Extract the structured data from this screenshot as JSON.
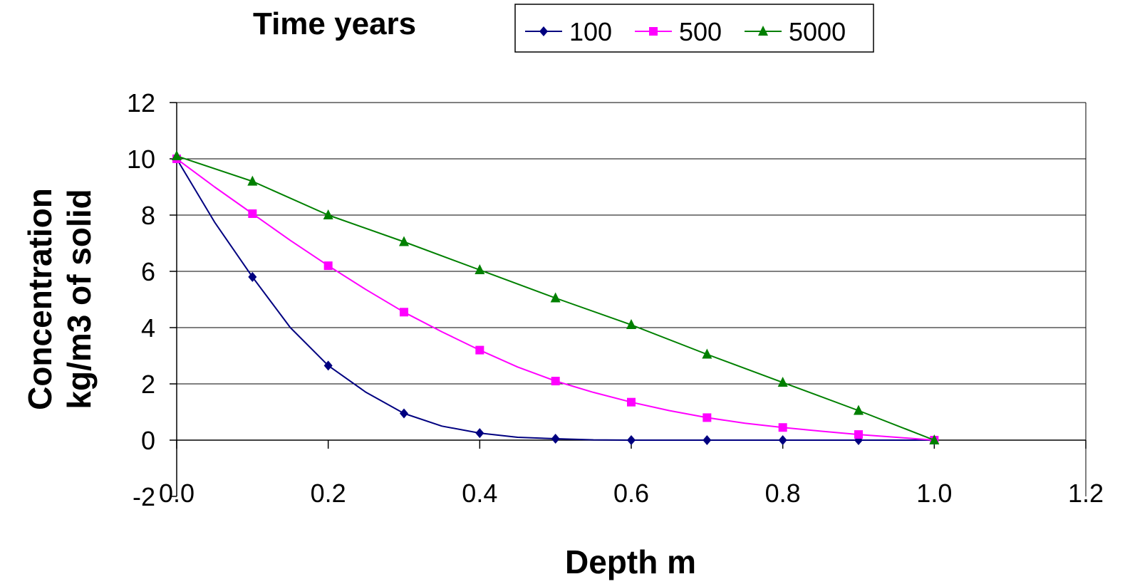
{
  "chart_data": {
    "type": "line",
    "legend_title": "Time years",
    "legend_position": "top-right",
    "xlabel": "Depth m",
    "ylabel_lines": [
      "Concentration",
      "kg/m3 of solid"
    ],
    "xlim": [
      0,
      1.2
    ],
    "ylim": [
      -2,
      12
    ],
    "x_ticks": [
      {
        "value": 0.0,
        "label": "0.0"
      },
      {
        "value": 0.2,
        "label": "0.2"
      },
      {
        "value": 0.4,
        "label": "0.4"
      },
      {
        "value": 0.6,
        "label": "0.6"
      },
      {
        "value": 0.8,
        "label": "0.8"
      },
      {
        "value": 1.0,
        "label": "1.0"
      },
      {
        "value": 1.2,
        "label": "1.2"
      }
    ],
    "y_ticks": [
      {
        "value": -2,
        "label": "-2"
      },
      {
        "value": 0,
        "label": "0"
      },
      {
        "value": 2,
        "label": "2"
      },
      {
        "value": 4,
        "label": "4"
      },
      {
        "value": 6,
        "label": "6"
      },
      {
        "value": 8,
        "label": "8"
      },
      {
        "value": 10,
        "label": "10"
      },
      {
        "value": 12,
        "label": "12"
      }
    ],
    "grid": "horizontal",
    "series": [
      {
        "name": "100",
        "color": "#000080",
        "marker": "diamond",
        "line": [
          [
            0,
            10
          ],
          [
            0.05,
            7.75
          ],
          [
            0.1,
            5.8
          ],
          [
            0.15,
            4.0
          ],
          [
            0.2,
            2.65
          ],
          [
            0.25,
            1.7
          ],
          [
            0.3,
            0.95
          ],
          [
            0.35,
            0.5
          ],
          [
            0.4,
            0.25
          ],
          [
            0.45,
            0.1
          ],
          [
            0.5,
            0.05
          ],
          [
            0.55,
            0.01
          ],
          [
            0.6,
            0
          ],
          [
            0.7,
            0
          ],
          [
            0.8,
            0
          ],
          [
            0.9,
            0
          ],
          [
            1.0,
            0
          ]
        ],
        "points": [
          [
            0,
            10
          ],
          [
            0.1,
            5.8
          ],
          [
            0.2,
            2.65
          ],
          [
            0.3,
            0.95
          ],
          [
            0.4,
            0.25
          ],
          [
            0.5,
            0.05
          ],
          [
            0.6,
            0
          ],
          [
            0.7,
            0
          ],
          [
            0.8,
            0
          ],
          [
            0.9,
            0
          ],
          [
            1.0,
            0
          ]
        ]
      },
      {
        "name": "500",
        "color": "#ff00ff",
        "marker": "square",
        "line": [
          [
            0,
            10
          ],
          [
            0.05,
            9.0
          ],
          [
            0.1,
            8.05
          ],
          [
            0.15,
            7.1
          ],
          [
            0.2,
            6.2
          ],
          [
            0.25,
            5.35
          ],
          [
            0.3,
            4.55
          ],
          [
            0.35,
            3.85
          ],
          [
            0.4,
            3.2
          ],
          [
            0.45,
            2.6
          ],
          [
            0.5,
            2.1
          ],
          [
            0.55,
            1.7
          ],
          [
            0.6,
            1.35
          ],
          [
            0.65,
            1.05
          ],
          [
            0.7,
            0.8
          ],
          [
            0.75,
            0.6
          ],
          [
            0.8,
            0.45
          ],
          [
            0.85,
            0.32
          ],
          [
            0.9,
            0.2
          ],
          [
            0.95,
            0.1
          ],
          [
            1.0,
            0
          ]
        ],
        "points": [
          [
            0,
            10
          ],
          [
            0.1,
            8.05
          ],
          [
            0.2,
            6.2
          ],
          [
            0.3,
            4.55
          ],
          [
            0.4,
            3.2
          ],
          [
            0.5,
            2.1
          ],
          [
            0.6,
            1.35
          ],
          [
            0.7,
            0.8
          ],
          [
            0.8,
            0.45
          ],
          [
            0.9,
            0.2
          ],
          [
            1.0,
            0
          ]
        ]
      },
      {
        "name": "5000",
        "color": "#008000",
        "marker": "triangle",
        "line": [
          [
            0,
            10.1
          ],
          [
            0.1,
            9.2
          ],
          [
            0.2,
            8.0
          ],
          [
            0.3,
            7.05
          ],
          [
            0.4,
            6.05
          ],
          [
            0.5,
            5.05
          ],
          [
            0.6,
            4.1
          ],
          [
            0.7,
            3.05
          ],
          [
            0.8,
            2.05
          ],
          [
            0.9,
            1.05
          ],
          [
            1.0,
            0
          ]
        ],
        "points": [
          [
            0,
            10.1
          ],
          [
            0.1,
            9.2
          ],
          [
            0.2,
            8.0
          ],
          [
            0.3,
            7.05
          ],
          [
            0.4,
            6.05
          ],
          [
            0.5,
            5.05
          ],
          [
            0.6,
            4.1
          ],
          [
            0.7,
            3.05
          ],
          [
            0.8,
            2.05
          ],
          [
            0.9,
            1.05
          ],
          [
            1.0,
            0
          ]
        ]
      }
    ]
  }
}
